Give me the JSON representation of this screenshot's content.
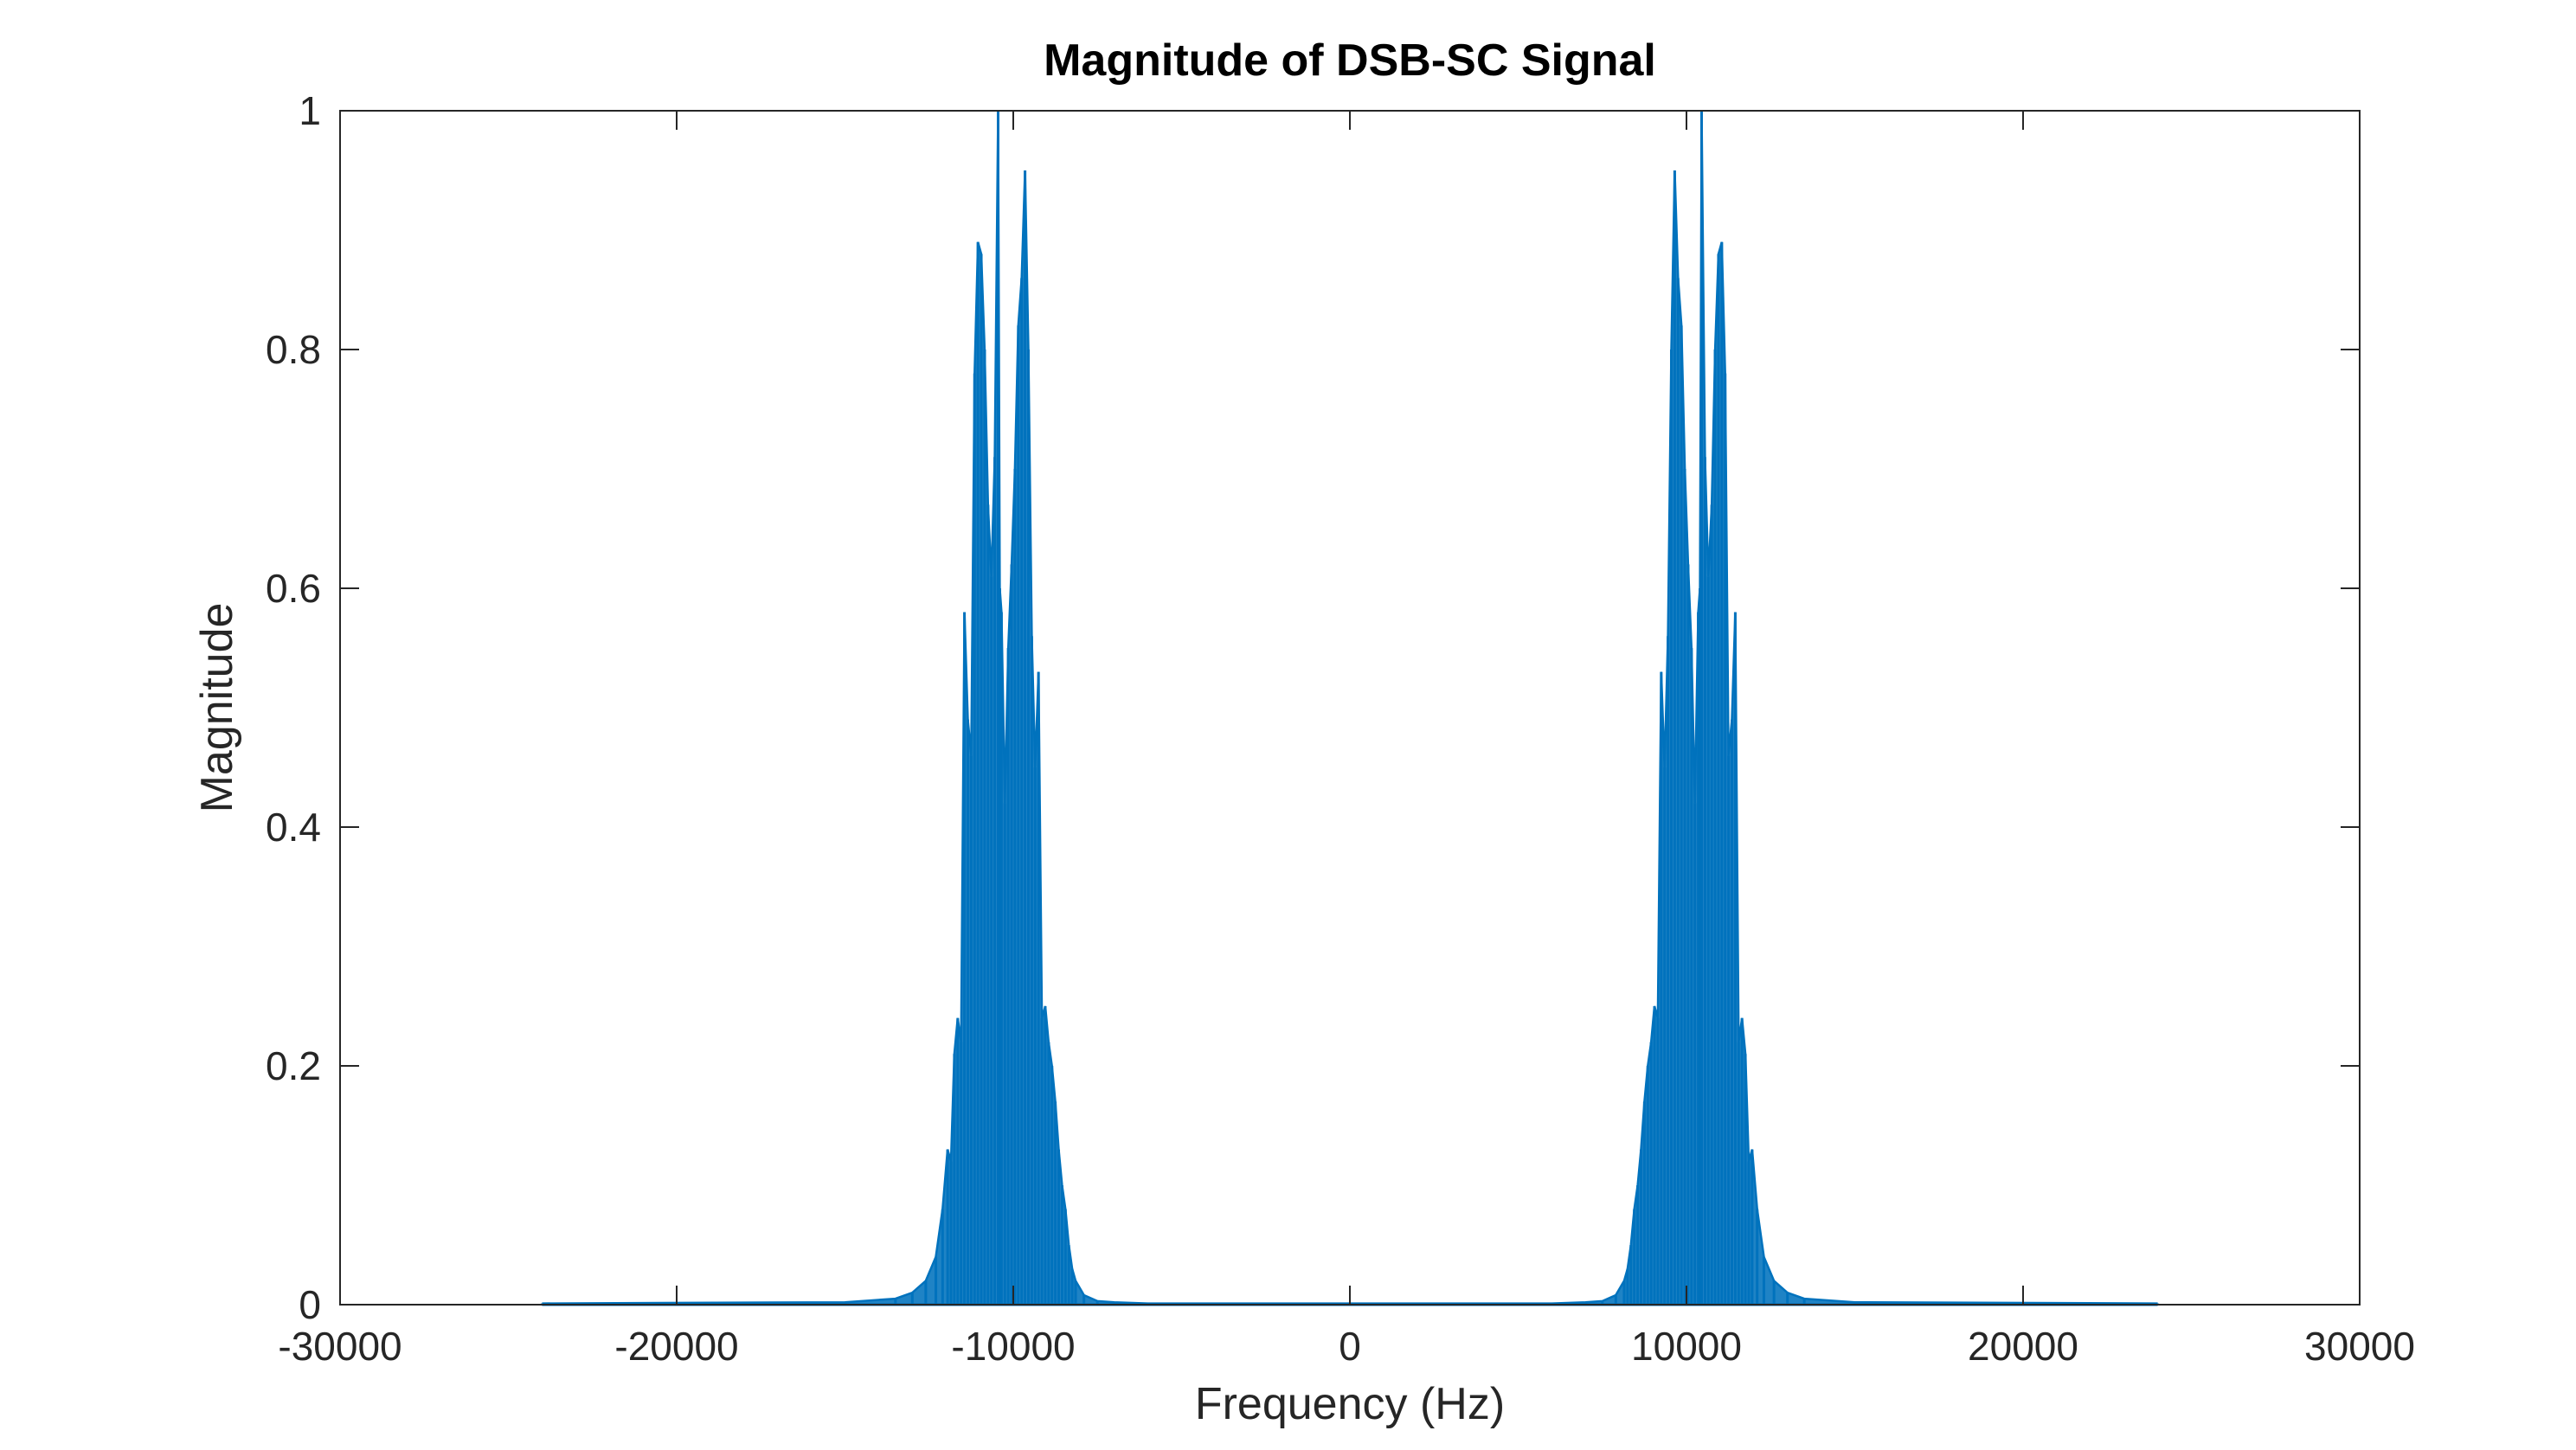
{
  "chart_data": {
    "type": "line",
    "title": "Magnitude of DSB-SC Signal",
    "xlabel": "Frequency (Hz)",
    "ylabel": "Magnitude",
    "xlim": [
      -30000,
      30000
    ],
    "ylim": [
      0,
      1
    ],
    "xticks": [
      -30000,
      -20000,
      -10000,
      0,
      10000,
      20000,
      30000
    ],
    "xtick_labels": [
      "-30000",
      "-20000",
      "-10000",
      "0",
      "10000",
      "20000",
      "30000"
    ],
    "yticks": [
      0,
      0.2,
      0.4,
      0.6,
      0.8,
      1
    ],
    "ytick_labels": [
      "0",
      "0.2",
      "0.4",
      "0.6",
      "0.8",
      "1"
    ],
    "grid": false,
    "box": true,
    "line_color": "#0072BD",
    "series": [
      {
        "x": [
          -24000,
          -15000,
          -13500,
          -13000,
          -12600,
          -12300,
          -12100,
          -11950,
          -11850,
          -11750,
          -11650,
          -11550,
          -11450,
          -11350,
          -11250,
          -11150,
          -11050,
          -10950,
          -10850,
          -10750,
          -10650,
          -10550,
          -10450,
          -10400,
          -10350,
          -10250,
          -10150,
          -10050,
          -9950,
          -9850,
          -9750,
          -9650,
          -9550,
          -9450,
          -9350,
          -9250,
          -9150,
          -9050,
          -8950,
          -8850,
          -8750,
          -8650,
          -8550,
          -8450,
          -8350,
          -8250,
          -8150,
          -7900,
          -7500,
          -7000,
          -6000,
          -3000,
          0,
          3000,
          6000,
          7000,
          7500,
          7900,
          8150,
          8250,
          8350,
          8450,
          8550,
          8650,
          8750,
          8850,
          8950,
          9050,
          9150,
          9250,
          9350,
          9450,
          9550,
          9650,
          9750,
          9850,
          9950,
          10050,
          10150,
          10250,
          10350,
          10400,
          10450,
          10550,
          10650,
          10750,
          10850,
          10950,
          11050,
          11150,
          11250,
          11350,
          11450,
          11550,
          11650,
          11750,
          11850,
          11950,
          12100,
          12300,
          12600,
          13000,
          13500,
          15000,
          24000
        ],
        "y": [
          0.001,
          0.002,
          0.005,
          0.01,
          0.02,
          0.04,
          0.08,
          0.13,
          0.12,
          0.21,
          0.24,
          0.22,
          0.58,
          0.49,
          0.46,
          0.78,
          0.89,
          0.88,
          0.8,
          0.67,
          0.61,
          0.71,
          1.0,
          0.6,
          0.58,
          0.42,
          0.55,
          0.62,
          0.7,
          0.82,
          0.86,
          0.95,
          0.8,
          0.56,
          0.45,
          0.53,
          0.24,
          0.25,
          0.22,
          0.2,
          0.17,
          0.13,
          0.1,
          0.08,
          0.05,
          0.03,
          0.02,
          0.008,
          0.003,
          0.002,
          0.001,
          0.001,
          0.001,
          0.001,
          0.001,
          0.002,
          0.003,
          0.008,
          0.02,
          0.03,
          0.05,
          0.08,
          0.1,
          0.13,
          0.17,
          0.2,
          0.22,
          0.25,
          0.24,
          0.53,
          0.45,
          0.56,
          0.8,
          0.95,
          0.86,
          0.82,
          0.7,
          0.62,
          0.55,
          0.42,
          0.58,
          0.6,
          1.0,
          0.71,
          0.61,
          0.67,
          0.8,
          0.88,
          0.89,
          0.78,
          0.46,
          0.49,
          0.58,
          0.22,
          0.24,
          0.21,
          0.12,
          0.13,
          0.08,
          0.04,
          0.02,
          0.01,
          0.005,
          0.002,
          0.001
        ]
      }
    ]
  }
}
